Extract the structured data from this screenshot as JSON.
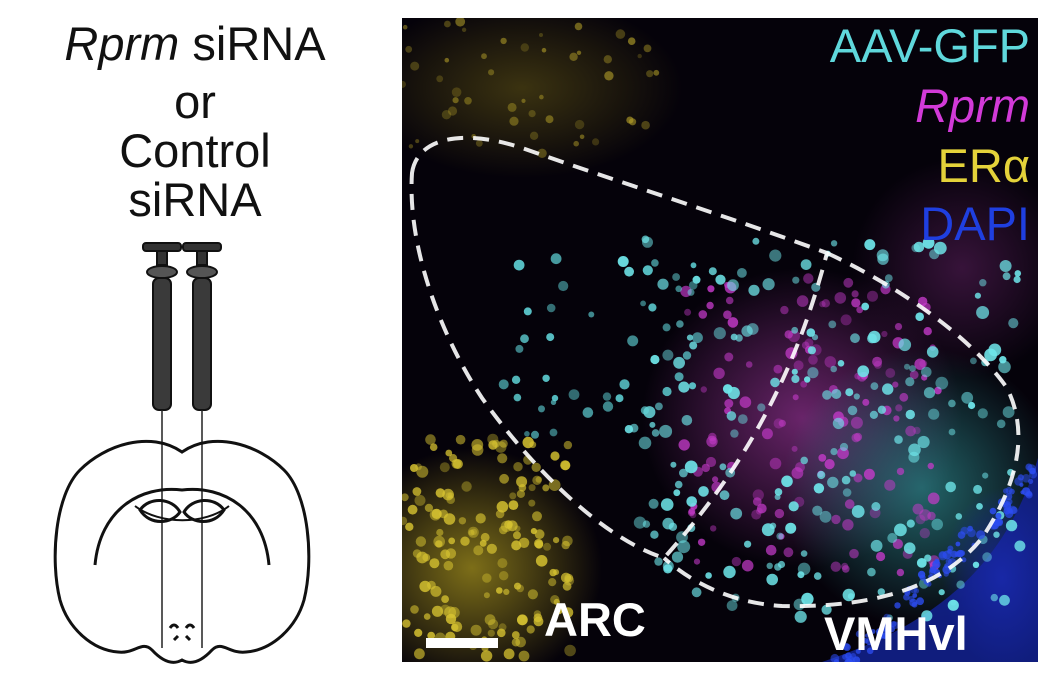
{
  "schematic": {
    "title_gene": "Rprm",
    "title_lines": [
      "siRNA",
      "or",
      "Control",
      "siRNA"
    ]
  },
  "legend": [
    {
      "label": "AAV-GFP",
      "color": "#5fd8dc",
      "italic": false
    },
    {
      "label": "Rprm",
      "color": "#d23ad8",
      "italic": true
    },
    {
      "label": "ERα",
      "color": "#e4d23a",
      "italic": false
    },
    {
      "label": "DAPI",
      "color": "#1f3fe0",
      "italic": false
    }
  ],
  "regions": {
    "arc": "ARC",
    "vmhvl": "VMHvl"
  },
  "colors": {
    "background": "#05020a",
    "outline": "#ffffff"
  }
}
